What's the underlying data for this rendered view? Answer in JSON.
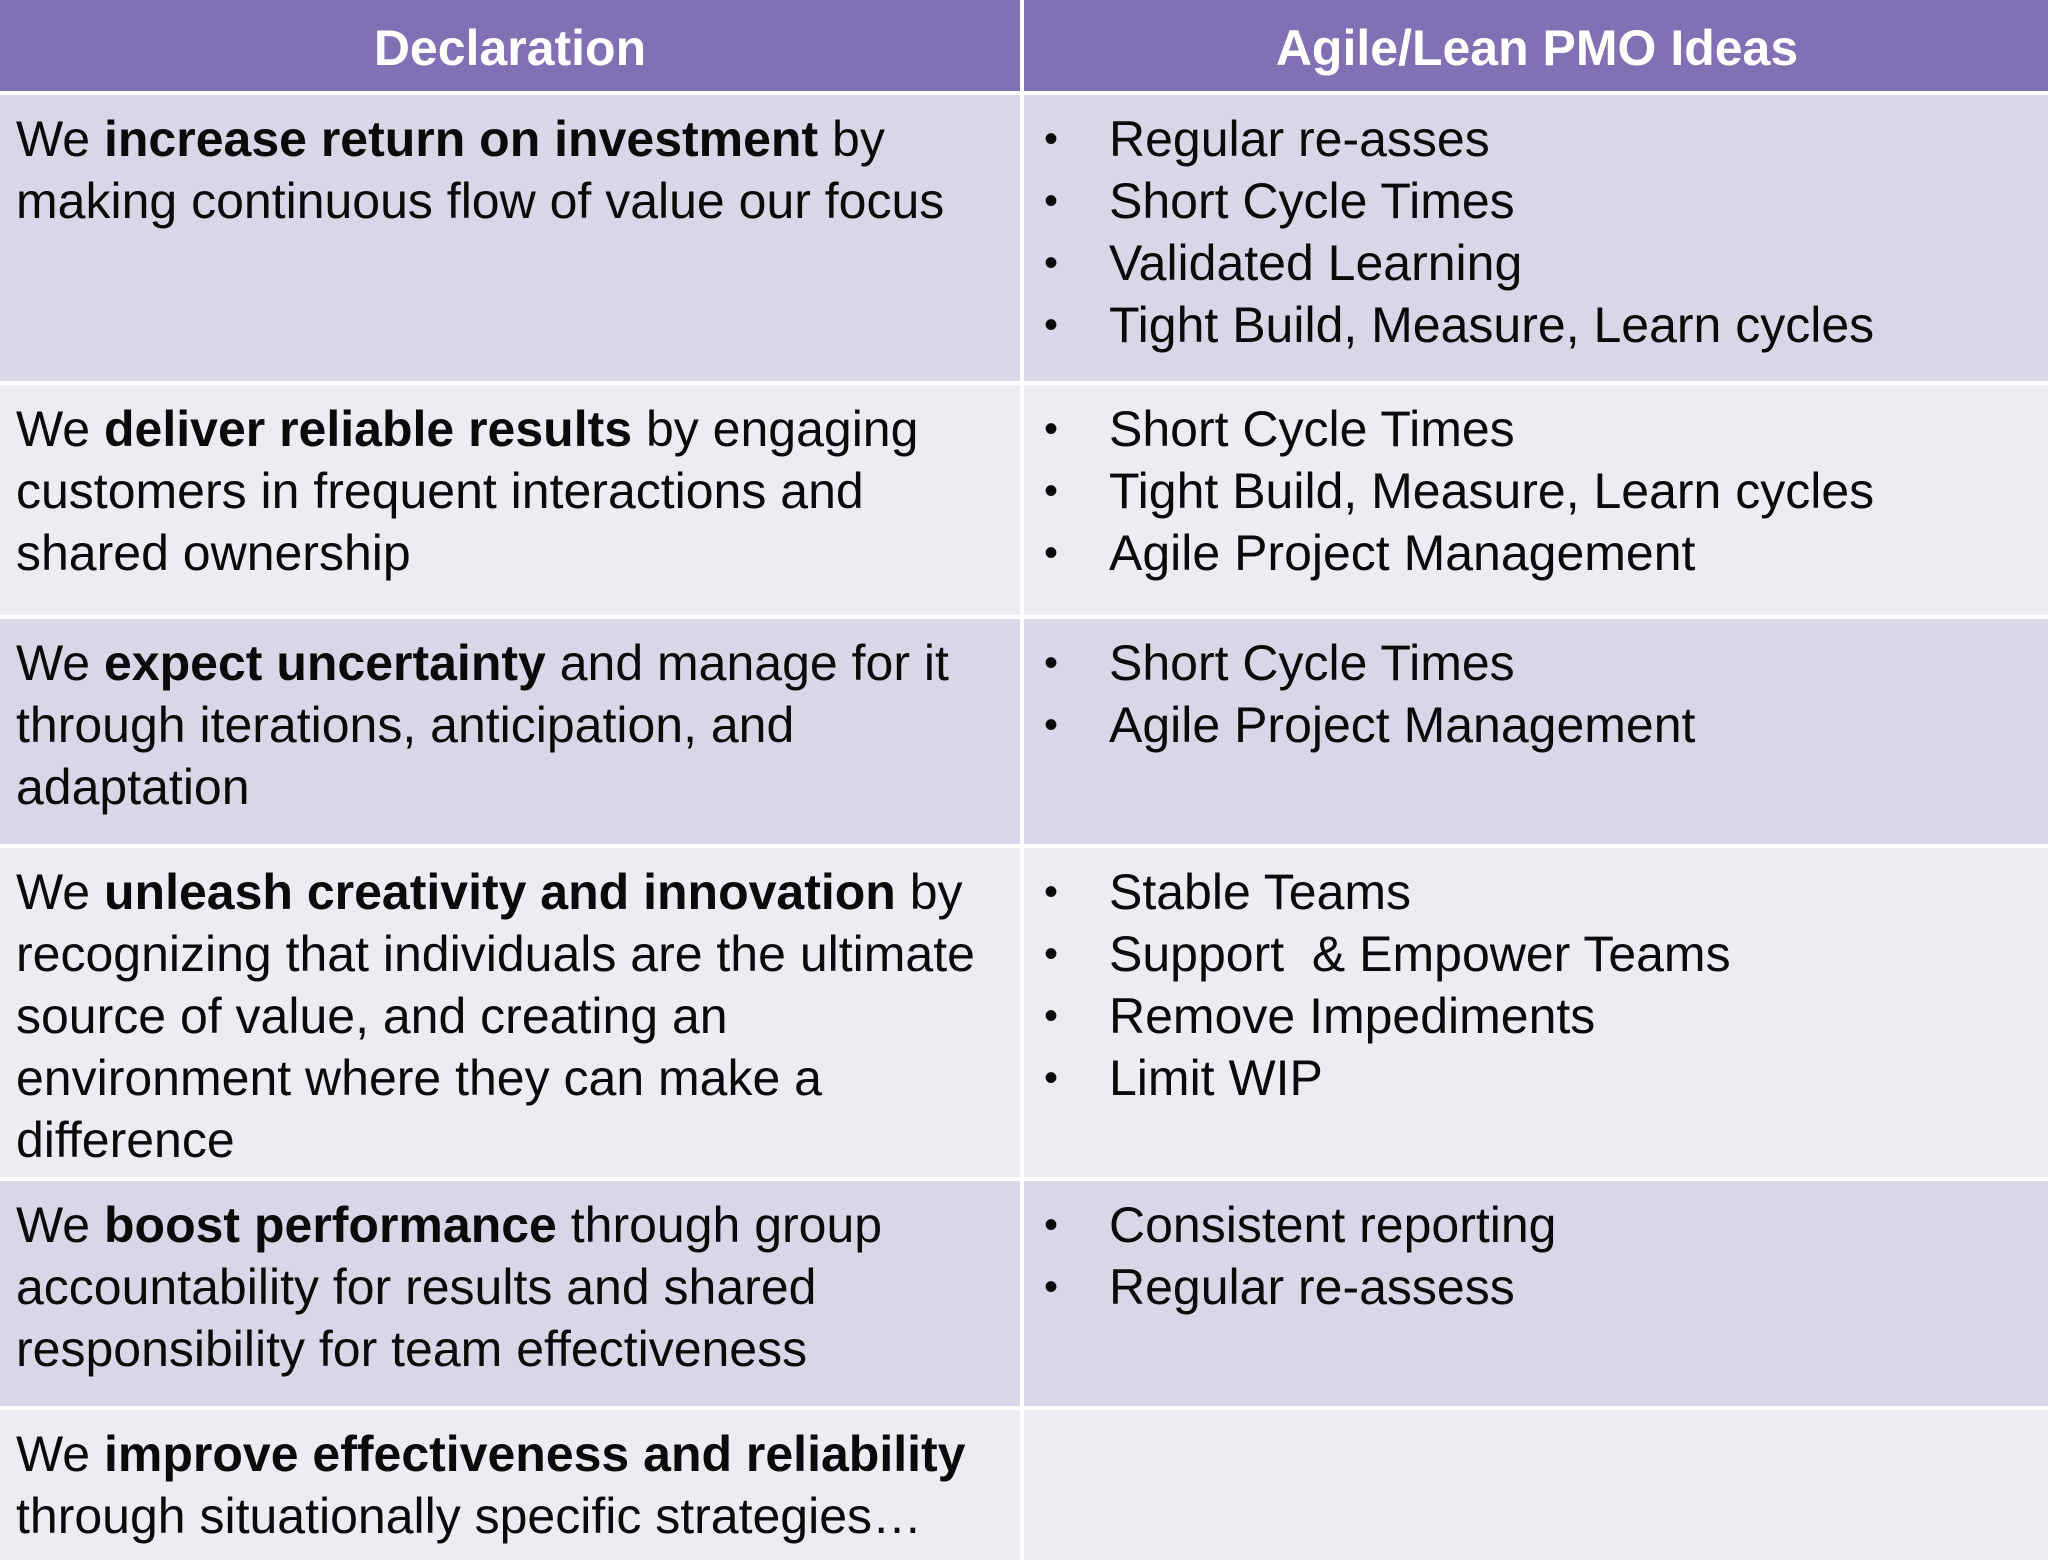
{
  "header": {
    "col1": "Declaration",
    "col2": "Agile/Lean PMO Ideas"
  },
  "rows": [
    {
      "prefix": "We ",
      "bold": "increase return on investment",
      "suffix": " by making continuous flow of value our focus",
      "ideas": [
        "Regular re-asses",
        "Short Cycle Times",
        "Validated Learning",
        "Tight Build, Measure, Learn cycles"
      ]
    },
    {
      "prefix": "We ",
      "bold": "deliver reliable results",
      "suffix": " by engaging customers in frequent interactions and shared ownership",
      "ideas": [
        "Short Cycle Times",
        "Tight Build, Measure, Learn cycles",
        "Agile Project Management"
      ]
    },
    {
      "prefix": "We ",
      "bold": "expect uncertainty",
      "suffix": " and manage for it through iterations, anticipation, and adaptation",
      "ideas": [
        "Short Cycle Times",
        "Agile Project Management"
      ]
    },
    {
      "prefix": "We ",
      "bold": "unleash creativity and innovation",
      "suffix": " by recognizing that individuals are the ultimate source of value, and creating an environment where they can make a difference",
      "ideas": [
        "Stable Teams",
        "Support  & Empower Teams",
        "Remove Impediments",
        "Limit WIP"
      ]
    },
    {
      "prefix": "We ",
      "bold": "boost performance",
      "suffix": " through group accountability for results and shared responsibility for team effectiveness",
      "ideas": [
        "Consistent reporting",
        "Regular re-assess"
      ]
    },
    {
      "prefix": "We ",
      "bold": "improve effectiveness and reliability",
      "suffix": " through situationally specific strategies…",
      "ideas": []
    }
  ],
  "bullet_glyph": "•",
  "colors": {
    "header_bg": "#8170b4",
    "header_text": "#ffffff",
    "row_dark": "#d9d7e7",
    "row_light": "#ececf2"
  }
}
